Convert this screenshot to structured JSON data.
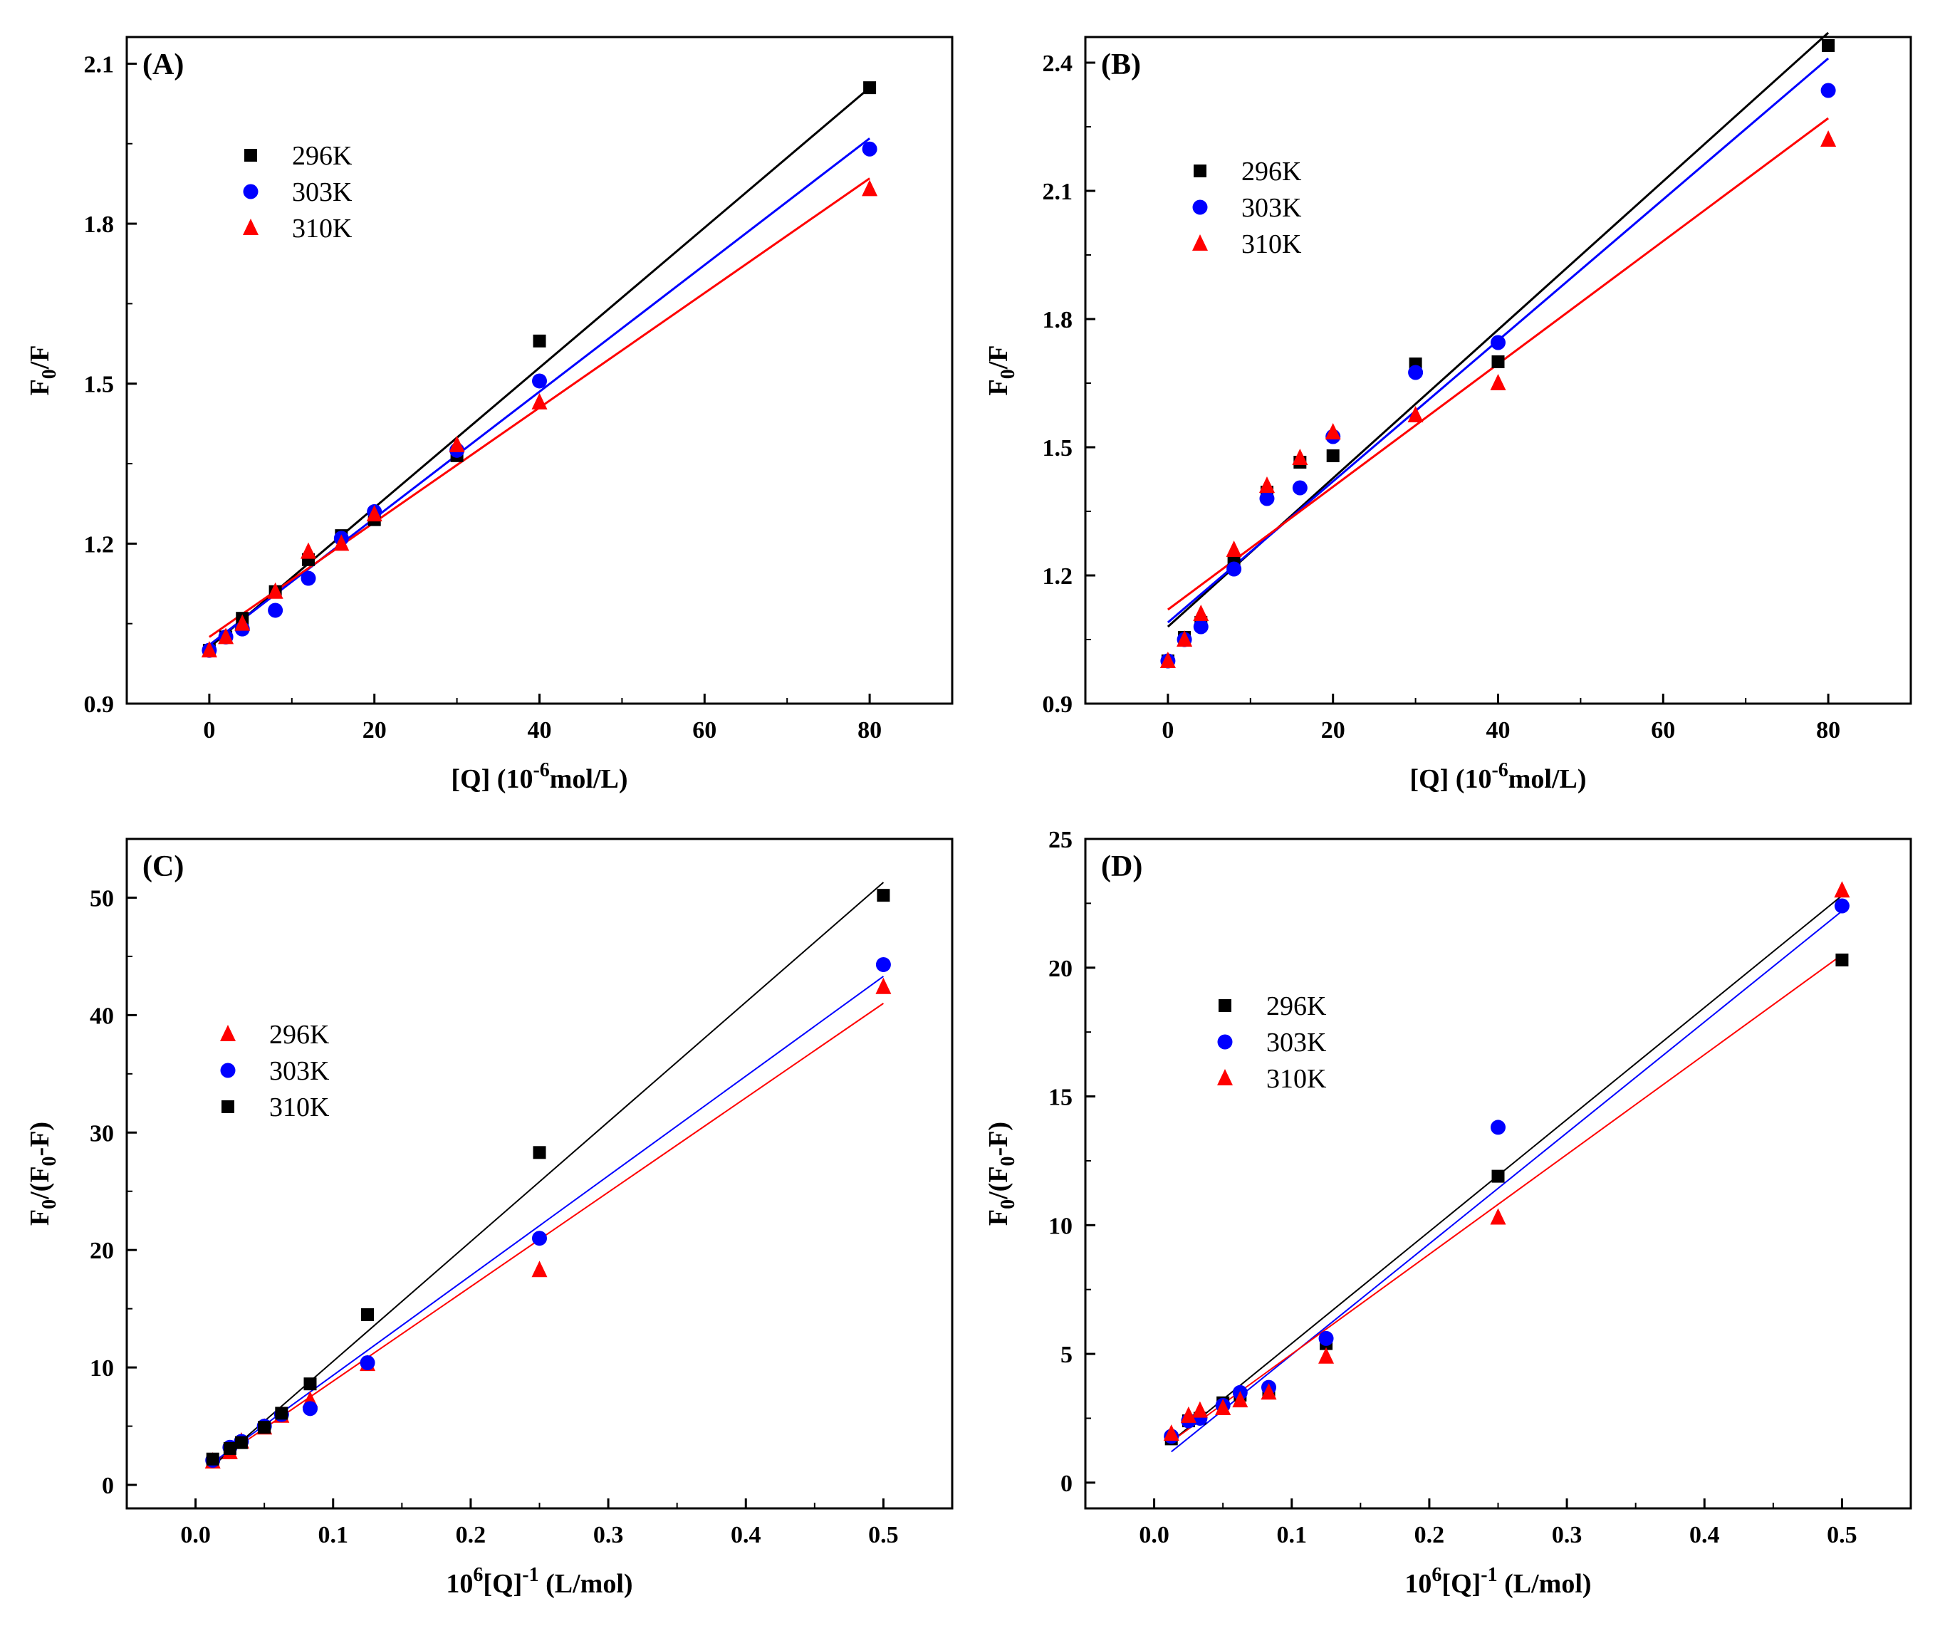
{
  "figure": {
    "panel_count": 4
  },
  "chart_data": [
    {
      "type": "scatter",
      "panel": "(A)",
      "xlabel": "[Q] (10-6mol/L)",
      "xlabel_main": "[Q] (10",
      "xlabel_sup": "-6",
      "xlabel_tail": "mol/L)",
      "ylabel": "F0/F",
      "ylabel_main": "F",
      "ylabel_sub": "0",
      "ylabel_tail": "/F",
      "xlim": [
        -10,
        90
      ],
      "ylim": [
        0.9,
        2.15
      ],
      "xticks": [
        0,
        20,
        40,
        60,
        80
      ],
      "xtick_labels": [
        "0",
        "20",
        "40",
        "60",
        "80"
      ],
      "yticks": [
        0.9,
        1.2,
        1.5,
        1.8,
        2.1
      ],
      "ytick_labels": [
        "0.9",
        "1.2",
        "1.5",
        "1.8",
        "2.1"
      ],
      "legend": {
        "position": "upper-left",
        "entries": [
          "296K",
          "303K",
          "310K"
        ]
      },
      "series": [
        {
          "name": "296K",
          "marker": "square",
          "color": "#000000",
          "x": [
            0,
            2,
            4,
            8,
            12,
            16,
            20,
            30,
            40,
            80
          ],
          "y": [
            1.0,
            1.025,
            1.06,
            1.11,
            1.17,
            1.215,
            1.245,
            1.365,
            1.58,
            2.055
          ],
          "fit": {
            "x": [
              0,
              80
            ],
            "y": [
              1.005,
              2.055
            ]
          }
        },
        {
          "name": "303K",
          "marker": "circle",
          "color": "#0000ff",
          "x": [
            0,
            2,
            4,
            8,
            12,
            16,
            20,
            30,
            40,
            80
          ],
          "y": [
            1.0,
            1.025,
            1.04,
            1.075,
            1.135,
            1.21,
            1.26,
            1.375,
            1.505,
            1.94
          ],
          "fit": {
            "x": [
              0,
              80
            ],
            "y": [
              1.01,
              1.96
            ]
          }
        },
        {
          "name": "310K",
          "marker": "triangle",
          "color": "#ff0000",
          "x": [
            0,
            2,
            4,
            8,
            12,
            16,
            20,
            30,
            40,
            80
          ],
          "y": [
            1.0,
            1.025,
            1.05,
            1.11,
            1.185,
            1.2,
            1.255,
            1.385,
            1.465,
            1.865
          ],
          "fit": {
            "x": [
              0,
              80
            ],
            "y": [
              1.025,
              1.885
            ]
          }
        }
      ]
    },
    {
      "type": "scatter",
      "panel": "(B)",
      "xlabel": "[Q] (10-6mol/L)",
      "xlabel_main": "[Q] (10",
      "xlabel_sup": "-6",
      "xlabel_tail": "mol/L)",
      "ylabel": "F0/F",
      "ylabel_main": "F",
      "ylabel_sub": "0",
      "ylabel_tail": "/F",
      "xlim": [
        -10,
        90
      ],
      "ylim": [
        0.9,
        2.46
      ],
      "xticks": [
        0,
        20,
        40,
        60,
        80
      ],
      "xtick_labels": [
        "0",
        "20",
        "40",
        "60",
        "80"
      ],
      "yticks": [
        0.9,
        1.2,
        1.5,
        1.8,
        2.1,
        2.4
      ],
      "ytick_labels": [
        "0.9",
        "1.2",
        "1.5",
        "1.8",
        "2.1",
        "2.4"
      ],
      "legend": {
        "position": "upper-left",
        "entries": [
          "296K",
          "303K",
          "310K"
        ]
      },
      "series": [
        {
          "name": "296K",
          "marker": "square",
          "color": "#000000",
          "x": [
            0,
            2,
            4,
            8,
            12,
            16,
            20,
            30,
            40,
            80
          ],
          "y": [
            1.0,
            1.055,
            1.09,
            1.23,
            1.395,
            1.465,
            1.48,
            1.695,
            1.7,
            2.44
          ],
          "fit": {
            "x": [
              0,
              80
            ],
            "y": [
              1.08,
              2.47
            ]
          }
        },
        {
          "name": "303K",
          "marker": "circle",
          "color": "#0000ff",
          "x": [
            0,
            2,
            4,
            8,
            12,
            16,
            20,
            30,
            40,
            80
          ],
          "y": [
            1.0,
            1.05,
            1.08,
            1.215,
            1.38,
            1.405,
            1.525,
            1.675,
            1.745,
            2.335
          ],
          "fit": {
            "x": [
              0,
              80
            ],
            "y": [
              1.09,
              2.41
            ]
          }
        },
        {
          "name": "310K",
          "marker": "triangle",
          "color": "#ff0000",
          "x": [
            0,
            2,
            4,
            8,
            12,
            16,
            20,
            30,
            40,
            80
          ],
          "y": [
            1.0,
            1.05,
            1.11,
            1.26,
            1.41,
            1.475,
            1.535,
            1.575,
            1.65,
            2.22
          ],
          "fit": {
            "x": [
              0,
              80
            ],
            "y": [
              1.12,
              2.27
            ]
          }
        }
      ]
    },
    {
      "type": "scatter",
      "panel": "(C)",
      "xlabel": "10^6[Q]^-1 (L/mol)",
      "xlabel_main": "10",
      "xlabel_sup": "6",
      "xlabel_mid": "[Q]",
      "xlabel_sup2": "-1",
      "xlabel_tail": " (L/mol)",
      "ylabel": "F0/(F0-F)",
      "ylabel_main": "F",
      "ylabel_sub": "0",
      "ylabel_mid": "/(F",
      "ylabel_sub2": "0",
      "ylabel_tail": "-F)",
      "xlim": [
        -0.05,
        0.55
      ],
      "ylim": [
        -2,
        55
      ],
      "xticks": [
        0.0,
        0.1,
        0.2,
        0.3,
        0.4,
        0.5
      ],
      "xtick_labels": [
        "0.0",
        "0.1",
        "0.2",
        "0.3",
        "0.4",
        "0.5"
      ],
      "yticks": [
        0,
        10,
        20,
        30,
        40,
        50
      ],
      "ytick_labels": [
        "0",
        "10",
        "20",
        "30",
        "40",
        "50"
      ],
      "legend": {
        "position": "center-left",
        "entries": [
          "296K",
          "303K",
          "310K"
        ]
      },
      "series": [
        {
          "name": "296K",
          "marker": "triangle",
          "color": "#ff0000",
          "x": [
            0.0125,
            0.025,
            0.0333,
            0.05,
            0.0625,
            0.0833,
            0.125,
            0.25,
            0.5
          ],
          "y": [
            2.0,
            2.8,
            3.7,
            4.9,
            5.9,
            7.2,
            10.3,
            18.3,
            42.4
          ],
          "fit": {
            "x": [
              0.0125,
              0.5
            ],
            "y": [
              1.8,
              41.0
            ]
          }
        },
        {
          "name": "303K",
          "marker": "circle",
          "color": "#0000ff",
          "x": [
            0.0125,
            0.025,
            0.0333,
            0.05,
            0.0625,
            0.0833,
            0.125,
            0.25,
            0.5
          ],
          "y": [
            2.1,
            3.2,
            3.7,
            5.0,
            6.0,
            6.5,
            10.4,
            21.0,
            44.3
          ],
          "fit": {
            "x": [
              0.0125,
              0.5
            ],
            "y": [
              1.9,
              43.3
            ]
          }
        },
        {
          "name": "310K",
          "marker": "square",
          "color": "#000000",
          "x": [
            0.0125,
            0.025,
            0.0333,
            0.05,
            0.0625,
            0.0833,
            0.125,
            0.25,
            0.5
          ],
          "y": [
            2.2,
            3.1,
            3.6,
            4.9,
            6.1,
            8.6,
            14.5,
            28.3,
            50.2
          ],
          "fit": {
            "x": [
              0.0125,
              0.5
            ],
            "y": [
              1.6,
              51.3
            ]
          }
        }
      ]
    },
    {
      "type": "scatter",
      "panel": "(D)",
      "xlabel": "10^6[Q]^-1 (L/mol)",
      "xlabel_main": "10",
      "xlabel_sup": "6",
      "xlabel_mid": "[Q]",
      "xlabel_sup2": "-1",
      "xlabel_tail": " (L/mol)",
      "ylabel": "F0/(F0-F)",
      "ylabel_main": "F",
      "ylabel_sub": "0",
      "ylabel_mid": "/(F",
      "ylabel_sub2": "0",
      "ylabel_tail": "-F)",
      "xlim": [
        -0.05,
        0.55
      ],
      "ylim": [
        -1,
        25
      ],
      "xticks": [
        0.0,
        0.1,
        0.2,
        0.3,
        0.4,
        0.5
      ],
      "xtick_labels": [
        "0.0",
        "0.1",
        "0.2",
        "0.3",
        "0.4",
        "0.5"
      ],
      "yticks": [
        0,
        5,
        10,
        15,
        20,
        25
      ],
      "ytick_labels": [
        "0",
        "5",
        "10",
        "15",
        "20",
        "25"
      ],
      "legend": {
        "position": "center-left",
        "entries": [
          "296K",
          "303K",
          "310K"
        ]
      },
      "series": [
        {
          "name": "296K",
          "marker": "square",
          "color": "#000000",
          "x": [
            0.0125,
            0.025,
            0.0333,
            0.05,
            0.0625,
            0.0833,
            0.125,
            0.25,
            0.5
          ],
          "y": [
            1.7,
            2.4,
            2.5,
            3.1,
            3.4,
            3.6,
            5.4,
            11.9,
            20.3
          ],
          "fit": {
            "x": [
              0.0125,
              0.5
            ],
            "y": [
              1.6,
              22.8
            ]
          }
        },
        {
          "name": "303K",
          "marker": "circle",
          "color": "#0000ff",
          "x": [
            0.0125,
            0.025,
            0.0333,
            0.05,
            0.0625,
            0.0833,
            0.125,
            0.25,
            0.5
          ],
          "y": [
            1.8,
            2.4,
            2.5,
            3.0,
            3.5,
            3.7,
            5.6,
            13.8,
            22.4
          ],
          "fit": {
            "x": [
              0.0125,
              0.5
            ],
            "y": [
              1.2,
              22.2
            ]
          }
        },
        {
          "name": "310K",
          "marker": "triangle",
          "color": "#ff0000",
          "x": [
            0.0125,
            0.025,
            0.0333,
            0.05,
            0.0625,
            0.0833,
            0.125,
            0.25,
            0.5
          ],
          "y": [
            1.9,
            2.6,
            2.8,
            2.9,
            3.2,
            3.5,
            4.9,
            10.3,
            23.0
          ],
          "fit": {
            "x": [
              0.0125,
              0.5
            ],
            "y": [
              1.6,
              20.5
            ]
          }
        }
      ]
    }
  ]
}
